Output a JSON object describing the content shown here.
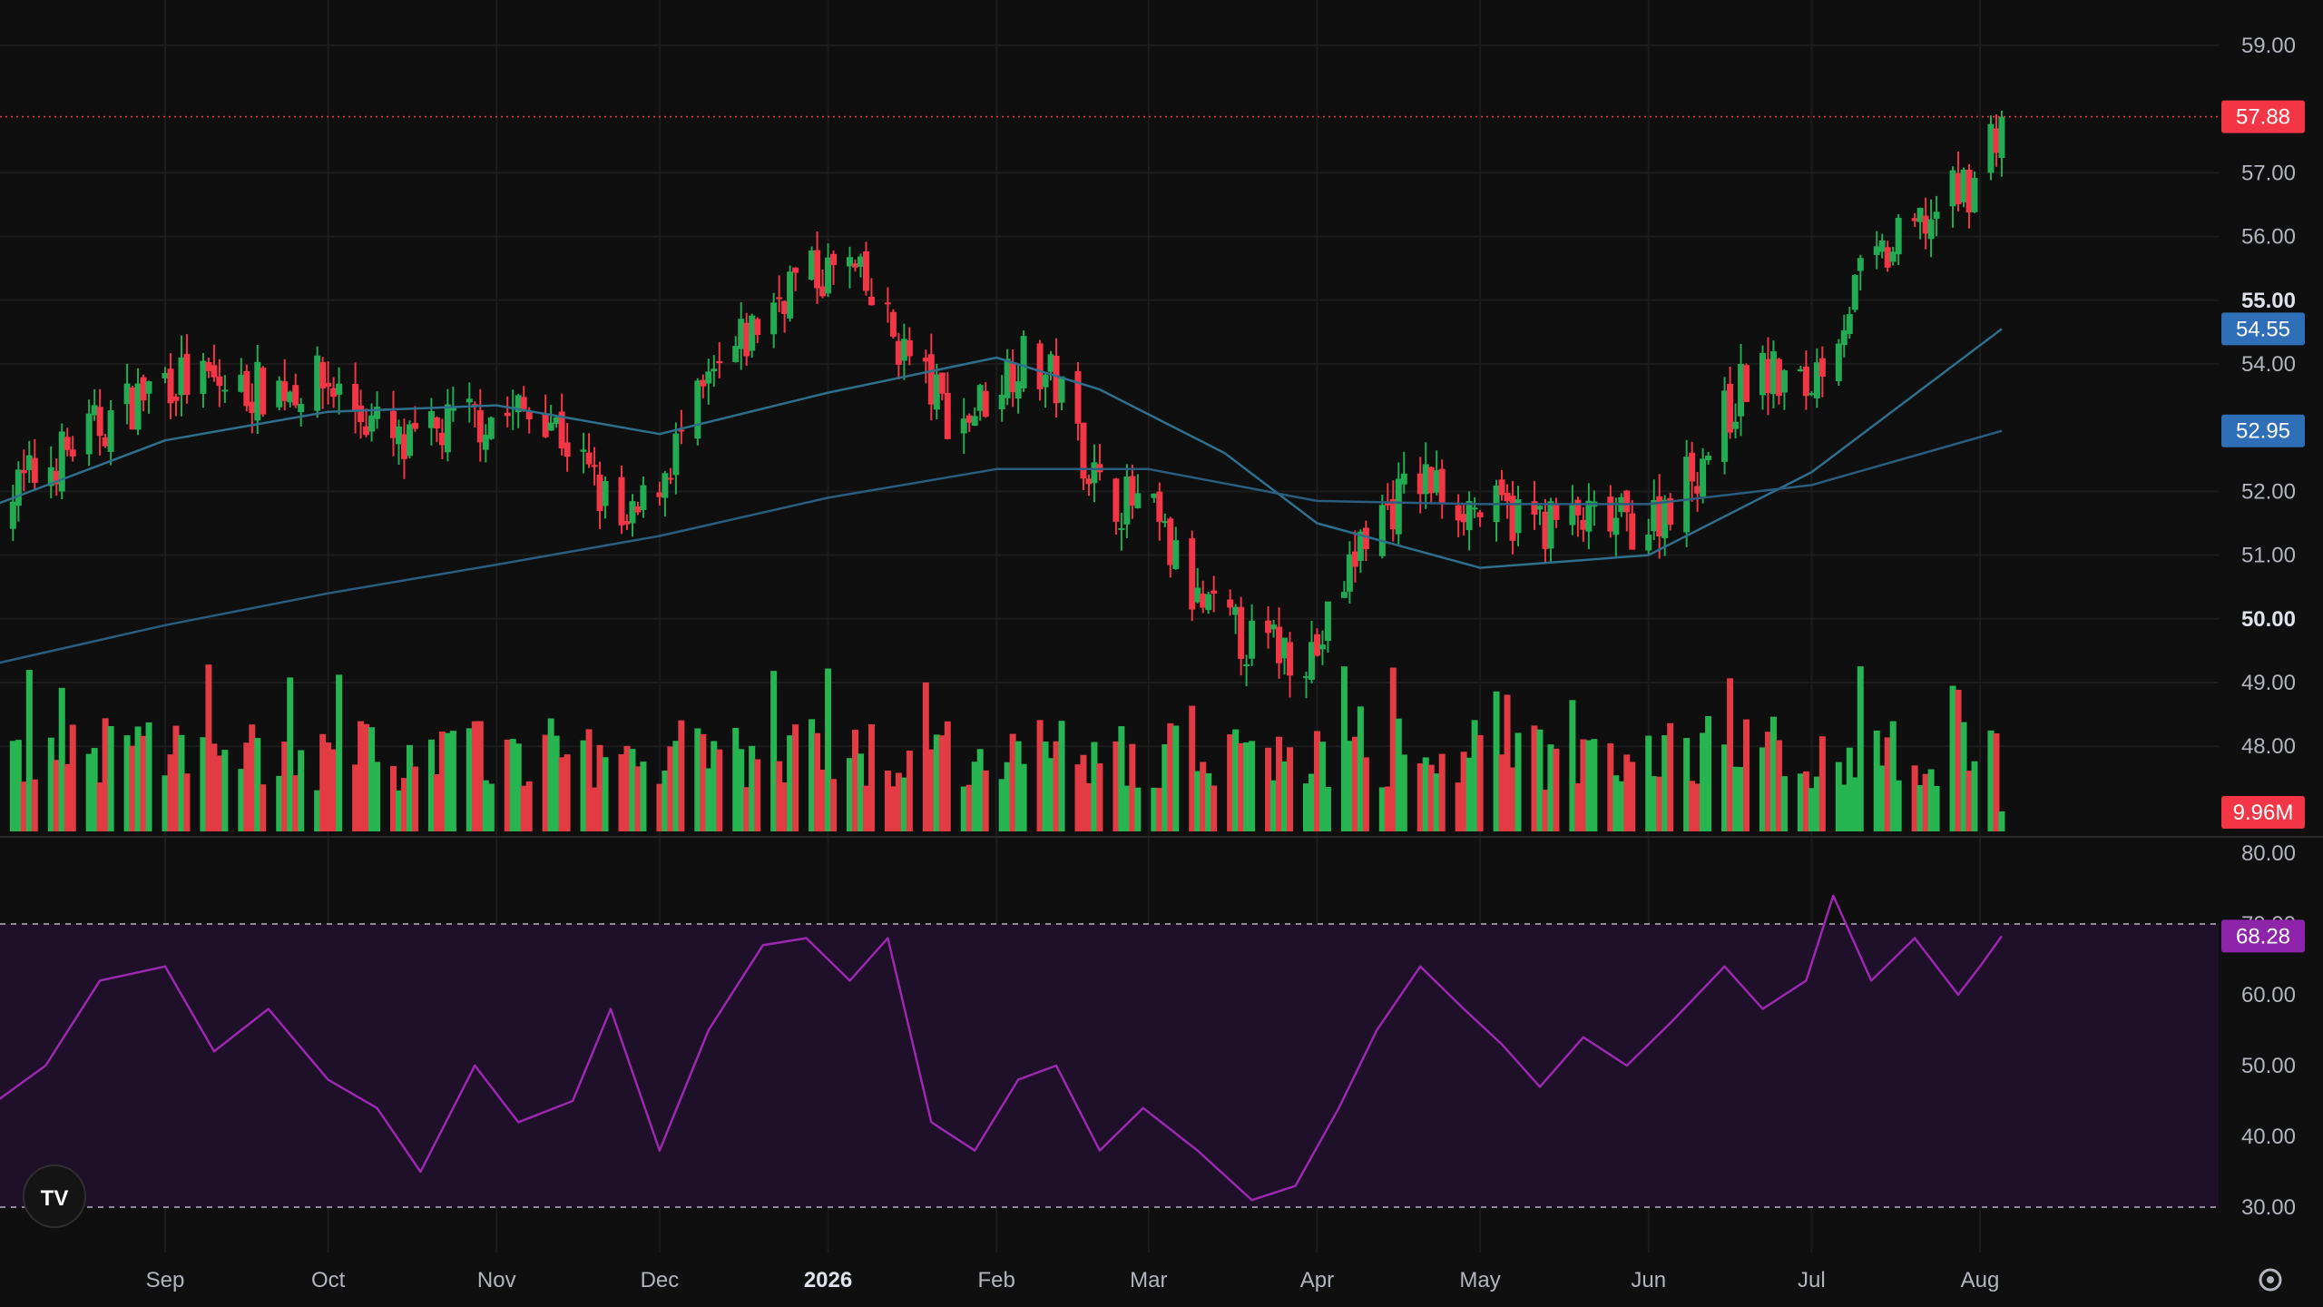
{
  "colors": {
    "background": "#0f0f0f",
    "grid": "#1c1c1c",
    "up": "#22ab52",
    "down": "#f23645",
    "volume_up": "#26b550",
    "volume_down": "#e23b44",
    "ma_fast": "#2e6f8e",
    "ma_slow": "#2a5d80",
    "ma_tag": "#2f6fb8",
    "rsi_line": "#9c27b0",
    "rsi_band": "#1e1028",
    "rsi_tag": "#8e24aa",
    "price_tag": "#f23645",
    "axis_text": "#b2b5be"
  },
  "icons": {
    "logo": "tradingview-logo-icon",
    "settings": "gear-icon"
  },
  "chart_data": [
    {
      "type": "candlestick",
      "panel": "price",
      "x_axis": {
        "type": "date",
        "range": [
          "2025-08-01",
          "2026-08-31"
        ],
        "labels": [
          {
            "date": "2025-09-01",
            "text": "Sep",
            "bold": false
          },
          {
            "date": "2025-10-01",
            "text": "Oct",
            "bold": false
          },
          {
            "date": "2025-11-01",
            "text": "Nov",
            "bold": false
          },
          {
            "date": "2025-12-01",
            "text": "Dec",
            "bold": false
          },
          {
            "date": "2026-01-01",
            "text": "2026",
            "bold": true
          },
          {
            "date": "2026-02-01",
            "text": "Feb",
            "bold": false
          },
          {
            "date": "2026-03-01",
            "text": "Mar",
            "bold": false
          },
          {
            "date": "2026-04-01",
            "text": "Apr",
            "bold": false
          },
          {
            "date": "2026-05-01",
            "text": "May",
            "bold": false
          },
          {
            "date": "2026-06-01",
            "text": "Jun",
            "bold": false
          },
          {
            "date": "2026-07-01",
            "text": "Jul",
            "bold": false
          },
          {
            "date": "2026-08-01",
            "text": "Aug",
            "bold": false
          }
        ]
      },
      "y_axis": {
        "range": [
          48.5,
          59.5
        ],
        "ticks": [
          {
            "value": 59,
            "text": "59.00",
            "bold": false
          },
          {
            "value": 57,
            "text": "57.00",
            "bold": false
          },
          {
            "value": 56,
            "text": "56.00",
            "bold": false
          },
          {
            "value": 55,
            "text": "55.00",
            "bold": true
          },
          {
            "value": 54,
            "text": "54.00",
            "bold": false
          },
          {
            "value": 52,
            "text": "52.00",
            "bold": false
          },
          {
            "value": 51,
            "text": "51.00",
            "bold": false
          },
          {
            "value": 50,
            "text": "50.00",
            "bold": true
          },
          {
            "value": 49,
            "text": "49.00",
            "bold": false
          },
          {
            "value": 48,
            "text": "48.00",
            "bold": false
          }
        ]
      },
      "grid": true,
      "price_anchors": [
        [
          "2025-08-01",
          51.8
        ],
        [
          "2025-08-15",
          52.7
        ],
        [
          "2025-09-01",
          53.8
        ],
        [
          "2025-09-15",
          53.6
        ],
        [
          "2025-10-01",
          53.7
        ],
        [
          "2025-10-15",
          52.6
        ],
        [
          "2025-10-25",
          53.1
        ],
        [
          "2025-11-10",
          53.3
        ],
        [
          "2025-11-25",
          51.3
        ],
        [
          "2025-12-10",
          53.6
        ],
        [
          "2025-12-25",
          55.3
        ],
        [
          "2026-01-05",
          55.5
        ],
        [
          "2026-01-15",
          54.2
        ],
        [
          "2026-01-25",
          53.0
        ],
        [
          "2026-02-05",
          54.1
        ],
        [
          "2026-02-12",
          53.7
        ],
        [
          "2026-02-20",
          52.0
        ],
        [
          "2026-03-01",
          51.7
        ],
        [
          "2026-03-10",
          50.2
        ],
        [
          "2026-03-20",
          49.6
        ],
        [
          "2026-04-01",
          49.5
        ],
        [
          "2026-04-10",
          51.4
        ],
        [
          "2026-04-20",
          52.2
        ],
        [
          "2026-05-01",
          51.7
        ],
        [
          "2026-05-15",
          51.5
        ],
        [
          "2026-06-01",
          51.5
        ],
        [
          "2026-06-10",
          52.4
        ],
        [
          "2026-06-20",
          53.9
        ],
        [
          "2026-06-30",
          53.6
        ],
        [
          "2026-07-10",
          55.3
        ],
        [
          "2026-07-20",
          56.1
        ],
        [
          "2026-07-31",
          56.9
        ],
        [
          "2026-08-05",
          57.88
        ]
      ],
      "series": [
        {
          "name": "",
          "kind": "moving-average-fast",
          "points": [
            [
              "2025-08-01",
              51.8
            ],
            [
              "2025-09-01",
              52.8
            ],
            [
              "2025-10-01",
              53.25
            ],
            [
              "2025-11-01",
              53.35
            ],
            [
              "2025-12-01",
              52.9
            ],
            [
              "2026-01-01",
              53.55
            ],
            [
              "2026-02-01",
              54.1
            ],
            [
              "2026-02-20",
              53.6
            ],
            [
              "2026-03-15",
              52.6
            ],
            [
              "2026-04-01",
              51.5
            ],
            [
              "2026-05-01",
              50.8
            ],
            [
              "2026-06-01",
              51.0
            ],
            [
              "2026-07-01",
              52.3
            ],
            [
              "2026-08-05",
              54.55
            ]
          ],
          "last_value": 54.55,
          "last_value_text": "54.55"
        },
        {
          "name": "",
          "kind": "moving-average-slow",
          "points": [
            [
              "2025-08-01",
              49.3
            ],
            [
              "2025-09-01",
              49.9
            ],
            [
              "2025-10-01",
              50.4
            ],
            [
              "2025-11-01",
              50.85
            ],
            [
              "2025-12-01",
              51.3
            ],
            [
              "2026-01-01",
              51.9
            ],
            [
              "2026-02-01",
              52.35
            ],
            [
              "2026-03-01",
              52.35
            ],
            [
              "2026-04-01",
              51.85
            ],
            [
              "2026-05-01",
              51.8
            ],
            [
              "2026-06-01",
              51.8
            ],
            [
              "2026-07-01",
              52.1
            ],
            [
              "2026-08-05",
              52.95
            ]
          ],
          "last_value": 52.95,
          "last_value_text": "52.95"
        }
      ],
      "last_price": 57.88,
      "last_price_text": "57.88"
    },
    {
      "type": "bar",
      "panel": "volume",
      "series": [
        {
          "name": "",
          "kind": "volume"
        }
      ],
      "last_value_text": "9.96M",
      "last_value": 9960000
    },
    {
      "type": "line",
      "panel": "rsi",
      "y_axis": {
        "range": [
          25,
          81
        ],
        "ticks": [
          {
            "value": 80,
            "text": "80.00"
          },
          {
            "value": 70,
            "text": "70.00"
          },
          {
            "value": 60,
            "text": "60.00"
          },
          {
            "value": 50,
            "text": "50.00"
          },
          {
            "value": 40,
            "text": "40.00"
          },
          {
            "value": 30,
            "text": "30.00"
          }
        ]
      },
      "band": [
        30,
        70
      ],
      "points": [
        [
          "2025-08-01",
          45
        ],
        [
          "2025-08-10",
          50
        ],
        [
          "2025-08-20",
          62
        ],
        [
          "2025-09-01",
          64
        ],
        [
          "2025-09-10",
          52
        ],
        [
          "2025-09-20",
          58
        ],
        [
          "2025-10-01",
          48
        ],
        [
          "2025-10-10",
          44
        ],
        [
          "2025-10-18",
          35
        ],
        [
          "2025-10-28",
          50
        ],
        [
          "2025-11-05",
          42
        ],
        [
          "2025-11-15",
          45
        ],
        [
          "2025-11-22",
          58
        ],
        [
          "2025-12-01",
          38
        ],
        [
          "2025-12-10",
          55
        ],
        [
          "2025-12-20",
          67
        ],
        [
          "2025-12-28",
          68
        ],
        [
          "2026-01-05",
          62
        ],
        [
          "2026-01-12",
          68
        ],
        [
          "2026-01-20",
          42
        ],
        [
          "2026-01-28",
          38
        ],
        [
          "2026-02-05",
          48
        ],
        [
          "2026-02-12",
          50
        ],
        [
          "2026-02-20",
          38
        ],
        [
          "2026-02-28",
          44
        ],
        [
          "2026-03-10",
          38
        ],
        [
          "2026-03-20",
          31
        ],
        [
          "2026-03-28",
          33
        ],
        [
          "2026-04-05",
          44
        ],
        [
          "2026-04-12",
          55
        ],
        [
          "2026-04-20",
          64
        ],
        [
          "2026-04-28",
          58
        ],
        [
          "2026-05-05",
          53
        ],
        [
          "2026-05-12",
          47
        ],
        [
          "2026-05-20",
          54
        ],
        [
          "2026-05-28",
          50
        ],
        [
          "2026-06-05",
          56
        ],
        [
          "2026-06-15",
          64
        ],
        [
          "2026-06-22",
          58
        ],
        [
          "2026-06-30",
          62
        ],
        [
          "2026-07-05",
          74
        ],
        [
          "2026-07-12",
          62
        ],
        [
          "2026-07-20",
          68
        ],
        [
          "2026-07-28",
          60
        ],
        [
          "2026-08-01",
          64
        ],
        [
          "2026-08-05",
          68.28
        ]
      ],
      "last_value": 68.28,
      "last_value_text": "68.28"
    }
  ]
}
